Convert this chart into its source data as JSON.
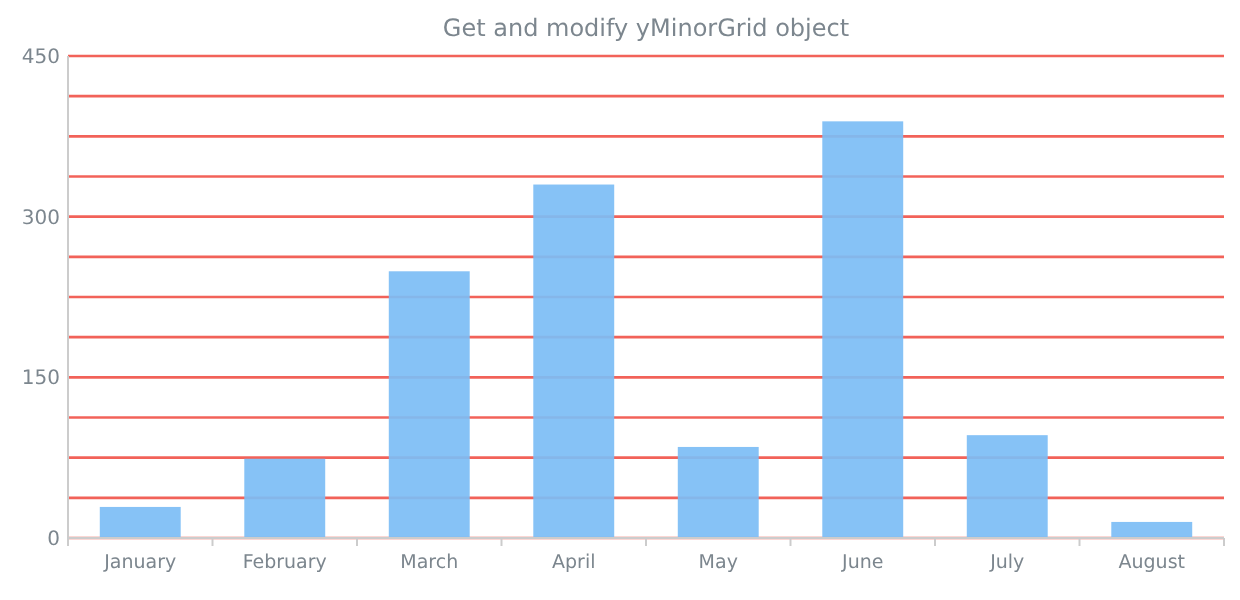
{
  "chart_data": {
    "type": "bar",
    "title": "Get and modify yMinorGrid object",
    "categories": [
      "January",
      "February",
      "March",
      "April",
      "May",
      "June",
      "July",
      "August"
    ],
    "values": [
      29,
      74,
      249,
      330,
      85,
      389,
      96,
      15
    ],
    "color": "#7cbdf5",
    "ylim": [
      0,
      450
    ],
    "yticks": [
      0,
      {
        "value": 37.5,
        "label": null
      },
      {
        "value": 75,
        "label": null
      },
      {
        "value": 112.5,
        "label": null
      },
      150,
      {
        "value": 187.5,
        "label": null
      },
      {
        "value": 225,
        "label": null
      },
      {
        "value": 262.5,
        "label": null
      },
      300,
      {
        "value": 337.5,
        "label": null
      },
      {
        "value": 375,
        "label": null
      },
      {
        "value": 412.5,
        "label": null
      },
      450
    ],
    "grid": "y"
  }
}
